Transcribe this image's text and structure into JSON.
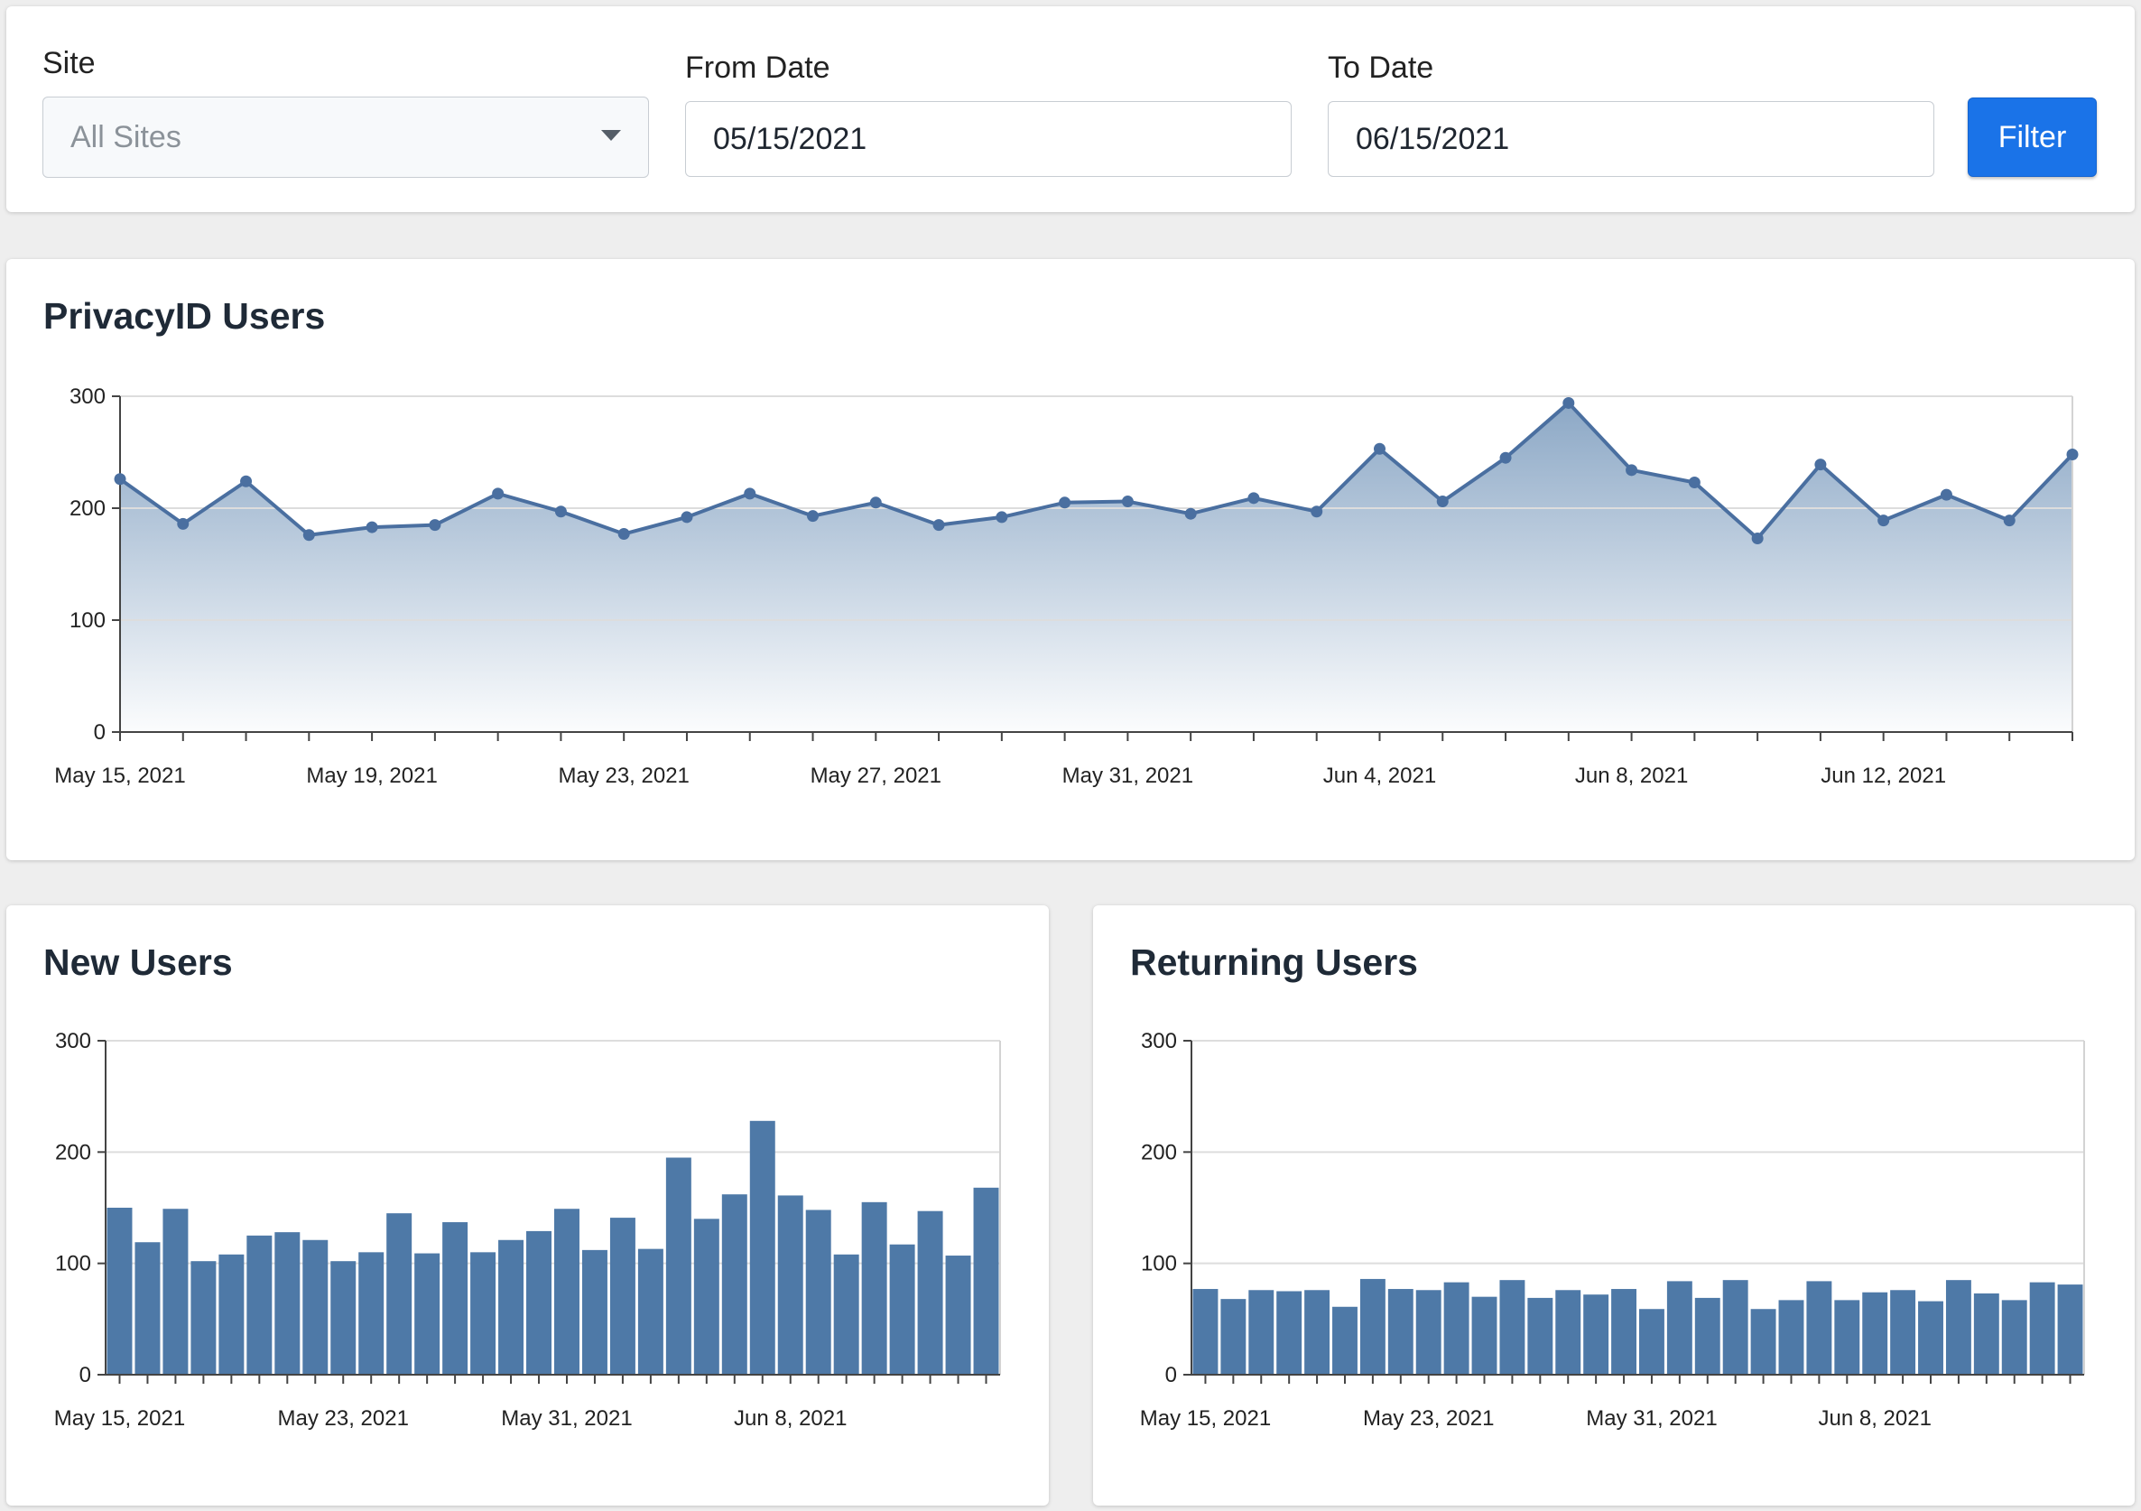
{
  "filters": {
    "site": {
      "label": "Site",
      "value": "All Sites"
    },
    "from_date": {
      "label": "From Date",
      "value": "05/15/2021"
    },
    "to_date": {
      "label": "To Date",
      "value": "06/15/2021"
    },
    "filter_button": "Filter"
  },
  "colors": {
    "series": "#4e79a7",
    "line": "#4a6fa0",
    "grid": "#dddddd",
    "button": "#1a73e8"
  },
  "chart_data": [
    {
      "id": "privacyid-users",
      "type": "area",
      "title": "PrivacyID Users",
      "xlabel": "",
      "ylabel": "",
      "ylim": [
        0,
        300
      ],
      "yticks": [
        0,
        100,
        200,
        300
      ],
      "x_start": "2021-05-15",
      "x_end": "2021-06-15",
      "x_tick_labels": [
        "May 15, 2021",
        "May 19, 2021",
        "May 23, 2021",
        "May 27, 2021",
        "May 31, 2021",
        "Jun 4, 2021",
        "Jun 8, 2021",
        "Jun 12, 2021"
      ],
      "grid": true,
      "values": [
        226,
        186,
        224,
        176,
        183,
        185,
        213,
        197,
        177,
        192,
        213,
        193,
        205,
        185,
        192,
        205,
        206,
        195,
        209,
        197,
        253,
        206,
        245,
        294,
        234,
        223,
        173,
        239,
        189,
        212,
        189,
        248
      ]
    },
    {
      "id": "new-users",
      "type": "bar",
      "title": "New Users",
      "xlabel": "",
      "ylabel": "",
      "ylim": [
        0,
        300
      ],
      "yticks": [
        0,
        100,
        200,
        300
      ],
      "x_start": "2021-05-15",
      "x_end": "2021-06-15",
      "x_tick_labels": [
        "May 15, 2021",
        "May 23, 2021",
        "May 31, 2021",
        "Jun 8, 2021"
      ],
      "grid": true,
      "values": [
        150,
        119,
        149,
        102,
        108,
        125,
        128,
        121,
        102,
        110,
        145,
        109,
        137,
        110,
        121,
        129,
        149,
        112,
        141,
        113,
        195,
        140,
        162,
        228,
        161,
        148,
        108,
        155,
        117,
        147,
        107,
        168
      ]
    },
    {
      "id": "returning-users",
      "type": "bar",
      "title": "Returning Users",
      "xlabel": "",
      "ylabel": "",
      "ylim": [
        0,
        300
      ],
      "yticks": [
        0,
        100,
        200,
        300
      ],
      "x_start": "2021-05-15",
      "x_end": "2021-06-15",
      "x_tick_labels": [
        "May 15, 2021",
        "May 23, 2021",
        "May 31, 2021",
        "Jun 8, 2021"
      ],
      "grid": true,
      "values": [
        77,
        68,
        76,
        75,
        76,
        61,
        86,
        77,
        76,
        83,
        70,
        85,
        69,
        76,
        72,
        77,
        59,
        84,
        69,
        85,
        59,
        67,
        84,
        67,
        74,
        76,
        66,
        85,
        73,
        67,
        83,
        81
      ]
    }
  ]
}
